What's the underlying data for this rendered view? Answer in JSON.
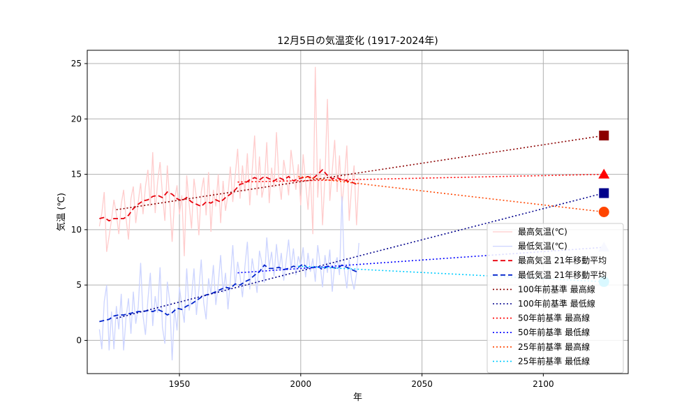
{
  "chart_data": {
    "type": "line",
    "title": "12月5日の気温変化 (1917-2024年)",
    "xlabel": "年",
    "ylabel": "気温 (℃)",
    "xlim": [
      1912,
      2135
    ],
    "ylim": [
      -3,
      26.2
    ],
    "x_ticks": [
      1950,
      2000,
      2050,
      2100
    ],
    "y_ticks": [
      0,
      5,
      10,
      15,
      20,
      25
    ],
    "grid": true,
    "legend_position": "bottom-right",
    "series": [
      {
        "name": "最高気温(℃)",
        "color": "#ffcccc",
        "style": "solid",
        "x": [
          1917,
          1918,
          1919,
          1920,
          1921,
          1922,
          1923,
          1924,
          1925,
          1926,
          1927,
          1928,
          1929,
          1930,
          1931,
          1932,
          1933,
          1934,
          1935,
          1936,
          1937,
          1938,
          1939,
          1940,
          1941,
          1942,
          1943,
          1944,
          1945,
          1946,
          1947,
          1948,
          1949,
          1950,
          1951,
          1952,
          1953,
          1954,
          1955,
          1956,
          1957,
          1958,
          1959,
          1960,
          1961,
          1962,
          1963,
          1964,
          1965,
          1966,
          1967,
          1968,
          1969,
          1970,
          1971,
          1972,
          1973,
          1974,
          1975,
          1976,
          1977,
          1978,
          1979,
          1980,
          1981,
          1982,
          1983,
          1984,
          1985,
          1986,
          1987,
          1988,
          1989,
          1990,
          1991,
          1992,
          1993,
          1994,
          1995,
          1996,
          1997,
          1998,
          1999,
          2000,
          2001,
          2002,
          2003,
          2004,
          2005,
          2006,
          2007,
          2008,
          2009,
          2010,
          2011,
          2012,
          2013,
          2014,
          2015,
          2016,
          2017,
          2018,
          2019,
          2020,
          2021,
          2022,
          2023,
          2024
        ],
        "values": [
          10.3,
          11.5,
          13.4,
          8.0,
          9.4,
          10.9,
          12.7,
          11.4,
          9.6,
          12.3,
          13.6,
          11.0,
          9.1,
          12.8,
          13.9,
          10.6,
          12.5,
          14.2,
          11.4,
          13.9,
          15.4,
          12.1,
          17.0,
          11.5,
          14.3,
          16.1,
          13.2,
          10.8,
          15.8,
          12.5,
          8.9,
          12.7,
          14.0,
          11.4,
          13.1,
          7.6,
          14.9,
          12.3,
          10.1,
          14.6,
          12.9,
          9.5,
          13.4,
          14.7,
          11.3,
          15.2,
          9.8,
          13.6,
          12.1,
          15.0,
          10.6,
          14.4,
          11.7,
          13.2,
          15.7,
          12.5,
          14.9,
          17.3,
          12.8,
          15.8,
          13.4,
          16.9,
          12.2,
          15.3,
          18.5,
          13.1,
          16.6,
          12.9,
          14.1,
          17.9,
          12.4,
          15.6,
          13.8,
          18.8,
          14.5,
          12.7,
          16.3,
          14.9,
          13.1,
          17.2,
          15.4,
          13.6,
          15.9,
          12.2,
          16.8,
          14.3,
          11.8,
          15.1,
          9.6,
          24.7,
          12.9,
          16.4,
          10.4,
          14.8,
          21.8,
          12.6,
          15.3,
          18.1,
          13.4,
          16.7,
          12.2,
          14.5,
          17.6,
          10.8,
          13.9,
          15.8,
          10.4,
          14.7
        ]
      },
      {
        "name": "最低気温(℃)",
        "color": "#ccd4ff",
        "style": "solid",
        "x": [
          1917,
          1918,
          1919,
          1920,
          1921,
          1922,
          1923,
          1924,
          1925,
          1926,
          1927,
          1928,
          1929,
          1930,
          1931,
          1932,
          1933,
          1934,
          1935,
          1936,
          1937,
          1938,
          1939,
          1940,
          1941,
          1942,
          1943,
          1944,
          1945,
          1946,
          1947,
          1948,
          1949,
          1950,
          1951,
          1952,
          1953,
          1954,
          1955,
          1956,
          1957,
          1958,
          1959,
          1960,
          1961,
          1962,
          1963,
          1964,
          1965,
          1966,
          1967,
          1968,
          1969,
          1970,
          1971,
          1972,
          1973,
          1974,
          1975,
          1976,
          1977,
          1978,
          1979,
          1980,
          1981,
          1982,
          1983,
          1984,
          1985,
          1986,
          1987,
          1988,
          1989,
          1990,
          1991,
          1992,
          1993,
          1994,
          1995,
          1996,
          1997,
          1998,
          1999,
          2000,
          2001,
          2002,
          2003,
          2004,
          2005,
          2006,
          2007,
          2008,
          2009,
          2010,
          2011,
          2012,
          2013,
          2014,
          2015,
          2016,
          2017,
          2018,
          2019,
          2020,
          2021,
          2022,
          2023,
          2024
        ],
        "values": [
          1.0,
          -0.8,
          3.5,
          5.0,
          -0.9,
          2.6,
          -0.8,
          3.1,
          1.0,
          4.2,
          -0.9,
          2.1,
          3.8,
          0.6,
          4.4,
          1.5,
          3.0,
          7.0,
          2.2,
          0.5,
          3.7,
          6.1,
          1.3,
          4.0,
          2.5,
          6.6,
          1.2,
          -0.3,
          5.3,
          3.5,
          -1.8,
          2.9,
          0.9,
          4.8,
          3.1,
          1.6,
          6.5,
          2.7,
          3.9,
          6.5,
          2.3,
          4.6,
          7.3,
          3.4,
          1.9,
          5.6,
          4.2,
          6.8,
          3.2,
          5.1,
          7.7,
          4.3,
          6.1,
          2.8,
          5.4,
          8.6,
          4.9,
          7.1,
          5.8,
          3.9,
          6.7,
          8.9,
          4.6,
          7.4,
          6.0,
          4.3,
          8.1,
          7.0,
          5.2,
          9.3,
          6.6,
          8.0,
          5.8,
          8.7,
          6.3,
          7.9,
          5.4,
          7.2,
          9.1,
          6.5,
          8.3,
          5.9,
          7.6,
          6.8,
          8.4,
          5.7,
          7.9,
          6.2,
          7.4,
          5.3,
          8.6,
          6.9,
          4.8,
          7.7,
          6.1,
          8.2,
          4.4,
          6.8,
          7.5,
          5.9,
          13.0,
          6.3,
          4.7,
          7.3,
          5.5,
          4.6,
          6.0,
          8.8
        ]
      },
      {
        "name": "最高気温 21年移動平均",
        "color": "#e8000b",
        "style": "dashed",
        "x": [
          1917,
          1919,
          1921,
          1923,
          1925,
          1927,
          1929,
          1931,
          1933,
          1935,
          1937,
          1939,
          1941,
          1943,
          1945,
          1947,
          1949,
          1951,
          1953,
          1955,
          1957,
          1959,
          1961,
          1963,
          1965,
          1967,
          1969,
          1971,
          1973,
          1975,
          1977,
          1979,
          1981,
          1983,
          1985,
          1987,
          1989,
          1991,
          1993,
          1995,
          1997,
          1999,
          2001,
          2003,
          2005,
          2007,
          2009,
          2011,
          2013,
          2015,
          2017,
          2019,
          2021,
          2023,
          2024
        ],
        "values": [
          11.0,
          11.1,
          10.8,
          11.0,
          11.0,
          11.0,
          11.3,
          11.9,
          12.3,
          12.6,
          12.7,
          13.0,
          13.1,
          12.9,
          13.4,
          13.2,
          12.8,
          12.6,
          12.9,
          12.5,
          12.3,
          12.1,
          12.5,
          12.4,
          12.7,
          12.5,
          12.9,
          13.2,
          13.6,
          14.1,
          14.2,
          14.5,
          14.7,
          14.5,
          14.8,
          14.6,
          14.4,
          14.7,
          14.5,
          14.8,
          14.4,
          14.6,
          14.7,
          14.8,
          14.6,
          15.0,
          15.4,
          14.9,
          14.6,
          14.7,
          14.5,
          14.4,
          14.3,
          14.1,
          14.2
        ]
      },
      {
        "name": "最低気温 21年移動平均",
        "color": "#0022cc",
        "style": "dashed",
        "x": [
          1917,
          1919,
          1921,
          1923,
          1925,
          1927,
          1929,
          1931,
          1933,
          1935,
          1937,
          1939,
          1941,
          1943,
          1945,
          1947,
          1949,
          1951,
          1953,
          1955,
          1957,
          1959,
          1961,
          1963,
          1965,
          1967,
          1969,
          1971,
          1973,
          1975,
          1977,
          1979,
          1981,
          1983,
          1985,
          1987,
          1989,
          1991,
          1993,
          1995,
          1997,
          1999,
          2001,
          2003,
          2005,
          2007,
          2009,
          2011,
          2013,
          2015,
          2017,
          2019,
          2021,
          2023,
          2024
        ],
        "values": [
          1.7,
          1.8,
          1.9,
          2.2,
          2.3,
          2.3,
          2.4,
          2.5,
          2.6,
          2.6,
          2.7,
          2.6,
          2.8,
          2.6,
          2.3,
          2.5,
          2.9,
          2.8,
          3.1,
          3.3,
          3.6,
          3.9,
          4.1,
          4.2,
          4.4,
          4.6,
          4.8,
          4.7,
          5.1,
          5.0,
          5.3,
          5.5,
          5.9,
          6.2,
          6.8,
          6.5,
          6.5,
          6.6,
          6.4,
          6.5,
          6.7,
          6.6,
          6.9,
          6.5,
          6.6,
          6.7,
          6.4,
          6.7,
          6.6,
          6.5,
          6.8,
          6.6,
          6.4,
          6.2,
          6.3
        ]
      },
      {
        "name": "100年前基準 最高線",
        "color": "#8b0000",
        "style": "dotted",
        "x": [
          1924,
          2125
        ],
        "values": [
          11.8,
          18.5
        ]
      },
      {
        "name": "100年前基準 最低線",
        "color": "#00008b",
        "style": "dotted",
        "x": [
          1924,
          2125
        ],
        "values": [
          2.0,
          13.3
        ]
      },
      {
        "name": "50年前基準 最高線",
        "color": "#ff0000",
        "style": "dotted",
        "x": [
          1974,
          2125
        ],
        "values": [
          14.3,
          15.0
        ]
      },
      {
        "name": "50年前基準 最低線",
        "color": "#0000ff",
        "style": "dotted",
        "x": [
          1974,
          2125
        ],
        "values": [
          6.1,
          8.4
        ]
      },
      {
        "name": "25年前基準 最高線",
        "color": "#ff4500",
        "style": "dotted",
        "x": [
          1999,
          2125
        ],
        "values": [
          14.8,
          11.6
        ]
      },
      {
        "name": "25年前基準 最低線",
        "color": "#00ccff",
        "style": "dotted",
        "x": [
          1999,
          2125
        ],
        "values": [
          6.7,
          5.3
        ]
      }
    ],
    "markers": [
      {
        "series": "100年前基準 最高線",
        "x": 2125,
        "value": 18.5,
        "shape": "square",
        "color": "#8b0000"
      },
      {
        "series": "50年前基準 最高線",
        "x": 2125,
        "value": 15.0,
        "shape": "triangle",
        "color": "#ff0000"
      },
      {
        "series": "100年前基準 最低線",
        "x": 2125,
        "value": 13.3,
        "shape": "square",
        "color": "#00008b"
      },
      {
        "series": "25年前基準 最高線",
        "x": 2125,
        "value": 11.6,
        "shape": "circle",
        "color": "#ff4500"
      },
      {
        "series": "50年前基準 最低線",
        "x": 2125,
        "value": 8.4,
        "shape": "triangle",
        "color": "#c8d0ff"
      },
      {
        "series": "25年前基準 最低線",
        "x": 2125,
        "value": 5.3,
        "shape": "circle",
        "color": "#00ccff"
      }
    ]
  }
}
